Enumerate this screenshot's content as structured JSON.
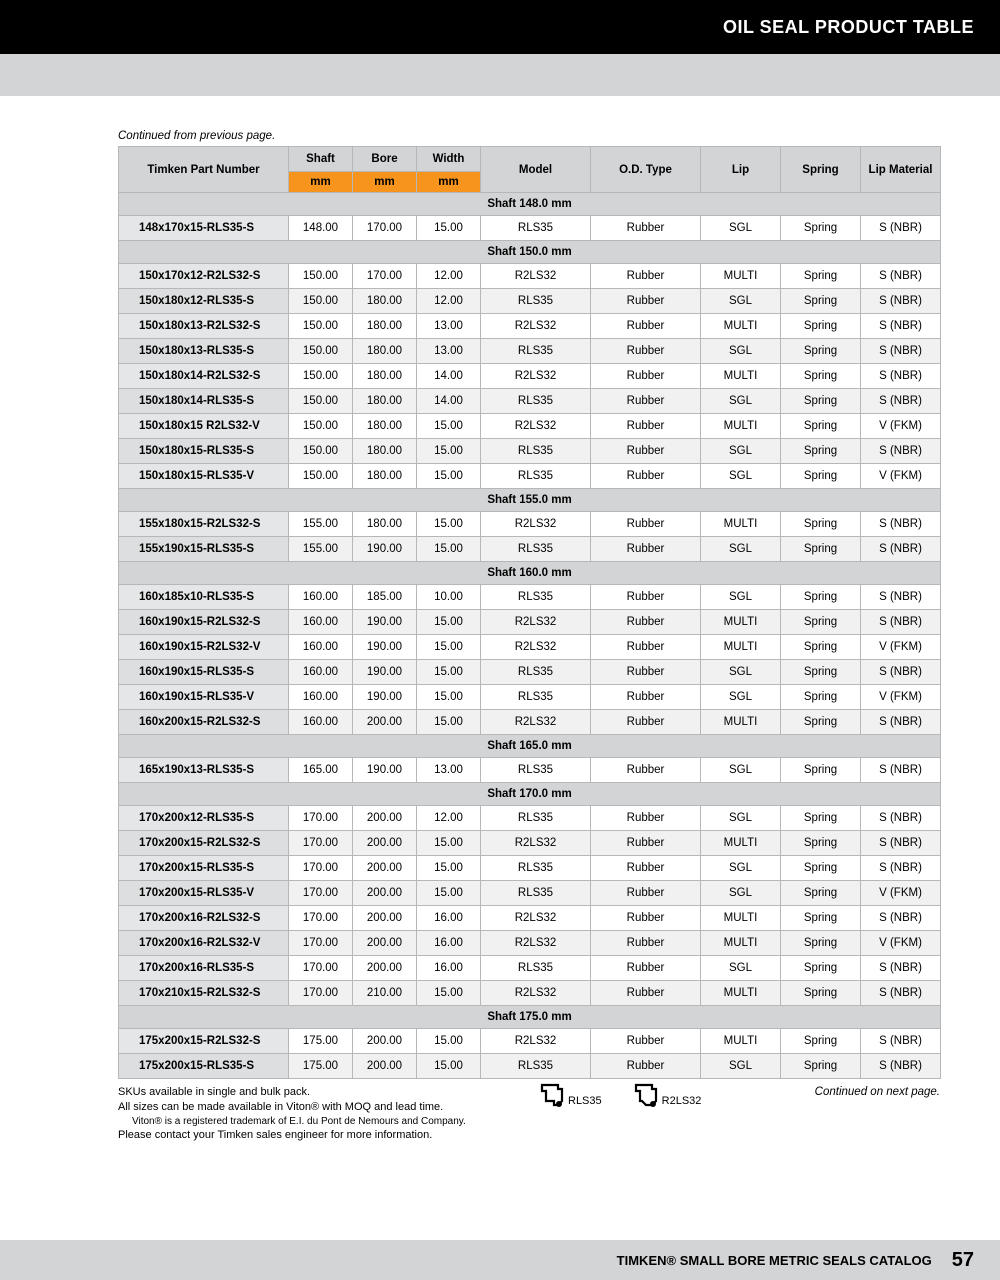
{
  "header": {
    "title": "OIL SEAL PRODUCT TABLE"
  },
  "continued_prev": "Continued from previous page.",
  "continued_next": "Continued on next page.",
  "columns": {
    "part": "Timken Part Number",
    "shaft": "Shaft",
    "bore": "Bore",
    "width": "Width",
    "model": "Model",
    "od": "O.D. Type",
    "lip": "Lip",
    "spring": "Spring",
    "mat": "Lip Material",
    "unit": "mm"
  },
  "sections": [
    {
      "label": "Shaft 148.0 mm",
      "rows": [
        {
          "pn": "148x170x15-RLS35-S",
          "shaft": "148.00",
          "bore": "170.00",
          "width": "15.00",
          "model": "RLS35",
          "od": "Rubber",
          "lip": "SGL",
          "spring": "Spring",
          "mat": "S (NBR)"
        }
      ]
    },
    {
      "label": "Shaft 150.0 mm",
      "rows": [
        {
          "pn": "150x170x12-R2LS32-S",
          "shaft": "150.00",
          "bore": "170.00",
          "width": "12.00",
          "model": "R2LS32",
          "od": "Rubber",
          "lip": "MULTI",
          "spring": "Spring",
          "mat": "S (NBR)"
        },
        {
          "pn": "150x180x12-RLS35-S",
          "shaft": "150.00",
          "bore": "180.00",
          "width": "12.00",
          "model": "RLS35",
          "od": "Rubber",
          "lip": "SGL",
          "spring": "Spring",
          "mat": "S (NBR)"
        },
        {
          "pn": "150x180x13-R2LS32-S",
          "shaft": "150.00",
          "bore": "180.00",
          "width": "13.00",
          "model": "R2LS32",
          "od": "Rubber",
          "lip": "MULTI",
          "spring": "Spring",
          "mat": "S (NBR)"
        },
        {
          "pn": "150x180x13-RLS35-S",
          "shaft": "150.00",
          "bore": "180.00",
          "width": "13.00",
          "model": "RLS35",
          "od": "Rubber",
          "lip": "SGL",
          "spring": "Spring",
          "mat": "S (NBR)"
        },
        {
          "pn": "150x180x14-R2LS32-S",
          "shaft": "150.00",
          "bore": "180.00",
          "width": "14.00",
          "model": "R2LS32",
          "od": "Rubber",
          "lip": "MULTI",
          "spring": "Spring",
          "mat": "S (NBR)"
        },
        {
          "pn": "150x180x14-RLS35-S",
          "shaft": "150.00",
          "bore": "180.00",
          "width": "14.00",
          "model": "RLS35",
          "od": "Rubber",
          "lip": "SGL",
          "spring": "Spring",
          "mat": "S (NBR)"
        },
        {
          "pn": "150x180x15 R2LS32-V",
          "shaft": "150.00",
          "bore": "180.00",
          "width": "15.00",
          "model": "R2LS32",
          "od": "Rubber",
          "lip": "MULTI",
          "spring": "Spring",
          "mat": "V (FKM)"
        },
        {
          "pn": "150x180x15-RLS35-S",
          "shaft": "150.00",
          "bore": "180.00",
          "width": "15.00",
          "model": "RLS35",
          "od": "Rubber",
          "lip": "SGL",
          "spring": "Spring",
          "mat": "S (NBR)"
        },
        {
          "pn": "150x180x15-RLS35-V",
          "shaft": "150.00",
          "bore": "180.00",
          "width": "15.00",
          "model": "RLS35",
          "od": "Rubber",
          "lip": "SGL",
          "spring": "Spring",
          "mat": "V (FKM)"
        }
      ]
    },
    {
      "label": "Shaft 155.0 mm",
      "rows": [
        {
          "pn": "155x180x15-R2LS32-S",
          "shaft": "155.00",
          "bore": "180.00",
          "width": "15.00",
          "model": "R2LS32",
          "od": "Rubber",
          "lip": "MULTI",
          "spring": "Spring",
          "mat": "S (NBR)"
        },
        {
          "pn": "155x190x15-RLS35-S",
          "shaft": "155.00",
          "bore": "190.00",
          "width": "15.00",
          "model": "RLS35",
          "od": "Rubber",
          "lip": "SGL",
          "spring": "Spring",
          "mat": "S (NBR)"
        }
      ]
    },
    {
      "label": "Shaft 160.0 mm",
      "rows": [
        {
          "pn": "160x185x10-RLS35-S",
          "shaft": "160.00",
          "bore": "185.00",
          "width": "10.00",
          "model": "RLS35",
          "od": "Rubber",
          "lip": "SGL",
          "spring": "Spring",
          "mat": "S (NBR)"
        },
        {
          "pn": "160x190x15-R2LS32-S",
          "shaft": "160.00",
          "bore": "190.00",
          "width": "15.00",
          "model": "R2LS32",
          "od": "Rubber",
          "lip": "MULTI",
          "spring": "Spring",
          "mat": "S (NBR)"
        },
        {
          "pn": "160x190x15-R2LS32-V",
          "shaft": "160.00",
          "bore": "190.00",
          "width": "15.00",
          "model": "R2LS32",
          "od": "Rubber",
          "lip": "MULTI",
          "spring": "Spring",
          "mat": "V (FKM)"
        },
        {
          "pn": "160x190x15-RLS35-S",
          "shaft": "160.00",
          "bore": "190.00",
          "width": "15.00",
          "model": "RLS35",
          "od": "Rubber",
          "lip": "SGL",
          "spring": "Spring",
          "mat": "S (NBR)"
        },
        {
          "pn": "160x190x15-RLS35-V",
          "shaft": "160.00",
          "bore": "190.00",
          "width": "15.00",
          "model": "RLS35",
          "od": "Rubber",
          "lip": "SGL",
          "spring": "Spring",
          "mat": "V (FKM)"
        },
        {
          "pn": "160x200x15-R2LS32-S",
          "shaft": "160.00",
          "bore": "200.00",
          "width": "15.00",
          "model": "R2LS32",
          "od": "Rubber",
          "lip": "MULTI",
          "spring": "Spring",
          "mat": "S (NBR)"
        }
      ]
    },
    {
      "label": "Shaft 165.0 mm",
      "rows": [
        {
          "pn": "165x190x13-RLS35-S",
          "shaft": "165.00",
          "bore": "190.00",
          "width": "13.00",
          "model": "RLS35",
          "od": "Rubber",
          "lip": "SGL",
          "spring": "Spring",
          "mat": "S (NBR)"
        }
      ]
    },
    {
      "label": "Shaft 170.0 mm",
      "rows": [
        {
          "pn": "170x200x12-RLS35-S",
          "shaft": "170.00",
          "bore": "200.00",
          "width": "12.00",
          "model": "RLS35",
          "od": "Rubber",
          "lip": "SGL",
          "spring": "Spring",
          "mat": "S (NBR)"
        },
        {
          "pn": "170x200x15-R2LS32-S",
          "shaft": "170.00",
          "bore": "200.00",
          "width": "15.00",
          "model": "R2LS32",
          "od": "Rubber",
          "lip": "MULTI",
          "spring": "Spring",
          "mat": "S (NBR)"
        },
        {
          "pn": "170x200x15-RLS35-S",
          "shaft": "170.00",
          "bore": "200.00",
          "width": "15.00",
          "model": "RLS35",
          "od": "Rubber",
          "lip": "SGL",
          "spring": "Spring",
          "mat": "S (NBR)"
        },
        {
          "pn": "170x200x15-RLS35-V",
          "shaft": "170.00",
          "bore": "200.00",
          "width": "15.00",
          "model": "RLS35",
          "od": "Rubber",
          "lip": "SGL",
          "spring": "Spring",
          "mat": "V (FKM)"
        },
        {
          "pn": "170x200x16-R2LS32-S",
          "shaft": "170.00",
          "bore": "200.00",
          "width": "16.00",
          "model": "R2LS32",
          "od": "Rubber",
          "lip": "MULTI",
          "spring": "Spring",
          "mat": "S (NBR)"
        },
        {
          "pn": "170x200x16-R2LS32-V",
          "shaft": "170.00",
          "bore": "200.00",
          "width": "16.00",
          "model": "R2LS32",
          "od": "Rubber",
          "lip": "MULTI",
          "spring": "Spring",
          "mat": "V (FKM)"
        },
        {
          "pn": "170x200x16-RLS35-S",
          "shaft": "170.00",
          "bore": "200.00",
          "width": "16.00",
          "model": "RLS35",
          "od": "Rubber",
          "lip": "SGL",
          "spring": "Spring",
          "mat": "S (NBR)"
        },
        {
          "pn": "170x210x15-R2LS32-S",
          "shaft": "170.00",
          "bore": "210.00",
          "width": "15.00",
          "model": "R2LS32",
          "od": "Rubber",
          "lip": "MULTI",
          "spring": "Spring",
          "mat": "S (NBR)"
        }
      ]
    },
    {
      "label": "Shaft 175.0 mm",
      "rows": [
        {
          "pn": "175x200x15-R2LS32-S",
          "shaft": "175.00",
          "bore": "200.00",
          "width": "15.00",
          "model": "R2LS32",
          "od": "Rubber",
          "lip": "MULTI",
          "spring": "Spring",
          "mat": "S (NBR)"
        },
        {
          "pn": "175x200x15-RLS35-S",
          "shaft": "175.00",
          "bore": "200.00",
          "width": "15.00",
          "model": "RLS35",
          "od": "Rubber",
          "lip": "SGL",
          "spring": "Spring",
          "mat": "S (NBR)"
        }
      ]
    }
  ],
  "legend": {
    "left": "RLS35",
    "right": "R2LS32"
  },
  "footnotes": {
    "l1": "SKUs available in single and bulk pack.",
    "l2": "All sizes can be made available in Viton® with MOQ and lead time.",
    "l3": "Viton® is a registered trademark of E.I. du Pont de Nemours and Company.",
    "l4": "Please contact your Timken sales engineer for more information."
  },
  "footer": {
    "catalog": "TIMKEN® SMALL BORE METRIC SEALS CATALOG",
    "page": "57"
  }
}
